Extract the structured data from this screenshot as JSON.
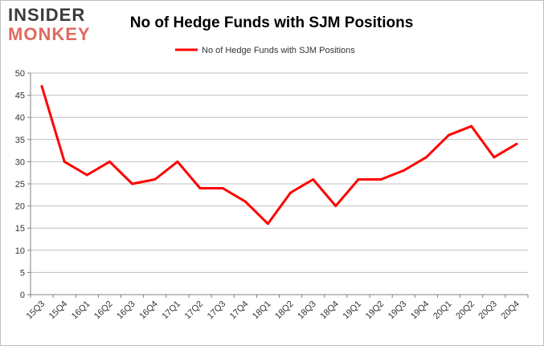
{
  "logo": {
    "line1": "INSIDER",
    "line2": "MONKEY"
  },
  "colors": {
    "series": "#ff0000",
    "grid": "#bfbfbf",
    "logo_dark": "#3a3a3a",
    "logo_accent": "#e06a5f"
  },
  "chart_data": {
    "type": "line",
    "title": "No of Hedge Funds with SJM Positions",
    "xlabel": "",
    "ylabel": "",
    "categories": [
      "15Q3",
      "15Q4",
      "16Q1",
      "16Q2",
      "16Q3",
      "16Q4",
      "17Q1",
      "17Q2",
      "17Q3",
      "17Q4",
      "18Q1",
      "18Q2",
      "18Q3",
      "18Q4",
      "19Q1",
      "19Q2",
      "19Q3",
      "19Q4",
      "20Q1",
      "20Q2",
      "20Q3",
      "20Q4"
    ],
    "series": [
      {
        "name": "No of Hedge Funds with SJM Positions",
        "values": [
          47,
          30,
          27,
          30,
          25,
          26,
          30,
          24,
          24,
          21,
          16,
          23,
          26,
          20,
          26,
          26,
          28,
          31,
          36,
          38,
          31,
          34
        ]
      }
    ],
    "ylim": [
      0,
      50
    ],
    "yticks": [
      0,
      5,
      10,
      15,
      20,
      25,
      30,
      35,
      40,
      45,
      50
    ],
    "grid": true,
    "legend": "top-center"
  }
}
